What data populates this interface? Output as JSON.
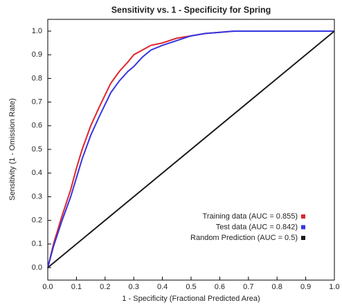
{
  "chart_data": {
    "type": "line",
    "title": "Sensitivity vs. 1 - Specificity for Spring",
    "x_label": "1 - Specificity  (Fractional Predicted Area)",
    "y_label": "Sensitivity  (1 - Omission Rate)",
    "xlim": [
      0,
      1
    ],
    "ylim": [
      0,
      1
    ],
    "xticks": [
      {
        "value": 0,
        "label": "0.0"
      },
      0.1,
      0.2,
      0.3,
      0.4,
      0.5,
      0.6,
      0.7,
      0.8,
      0.9,
      {
        "value": 1,
        "label": "1.0"
      }
    ],
    "yticks": [
      {
        "value": 0,
        "label": "0.0"
      },
      0.1,
      0.2,
      0.3,
      0.4,
      0.5,
      0.6,
      0.7,
      0.8,
      0.9,
      {
        "value": 1,
        "label": "1.0"
      }
    ],
    "grid": false,
    "legend": "lower right",
    "series": [
      {
        "name": "Training data (AUC = 0.855)",
        "color": "#e0242c",
        "x": [
          0,
          0.02,
          0.05,
          0.08,
          0.1,
          0.12,
          0.15,
          0.18,
          0.2,
          0.22,
          0.25,
          0.28,
          0.3,
          0.33,
          0.36,
          0.4,
          0.45,
          0.5,
          0.55,
          0.6,
          0.65,
          0.7,
          0.8,
          0.9,
          1.0
        ],
        "values": [
          0,
          0.1,
          0.22,
          0.33,
          0.42,
          0.5,
          0.6,
          0.68,
          0.73,
          0.78,
          0.83,
          0.87,
          0.9,
          0.92,
          0.94,
          0.95,
          0.97,
          0.98,
          0.99,
          0.995,
          1,
          1,
          1,
          1,
          1
        ]
      },
      {
        "name": "Test data (AUC = 0.842)",
        "color": "#3535e0",
        "x": [
          0,
          0.02,
          0.05,
          0.08,
          0.1,
          0.12,
          0.15,
          0.18,
          0.2,
          0.22,
          0.25,
          0.28,
          0.3,
          0.33,
          0.36,
          0.4,
          0.45,
          0.5,
          0.55,
          0.6,
          0.65,
          0.7,
          0.8,
          0.9,
          1.0
        ],
        "values": [
          0,
          0.09,
          0.2,
          0.3,
          0.38,
          0.46,
          0.56,
          0.64,
          0.69,
          0.74,
          0.79,
          0.83,
          0.85,
          0.89,
          0.92,
          0.94,
          0.96,
          0.98,
          0.99,
          0.995,
          1,
          1,
          1,
          1,
          1
        ]
      },
      {
        "name": "Random Prediction (AUC = 0.5)",
        "color": "#1a1a1a",
        "x": [
          0,
          1
        ],
        "values": [
          0,
          1
        ]
      }
    ]
  }
}
